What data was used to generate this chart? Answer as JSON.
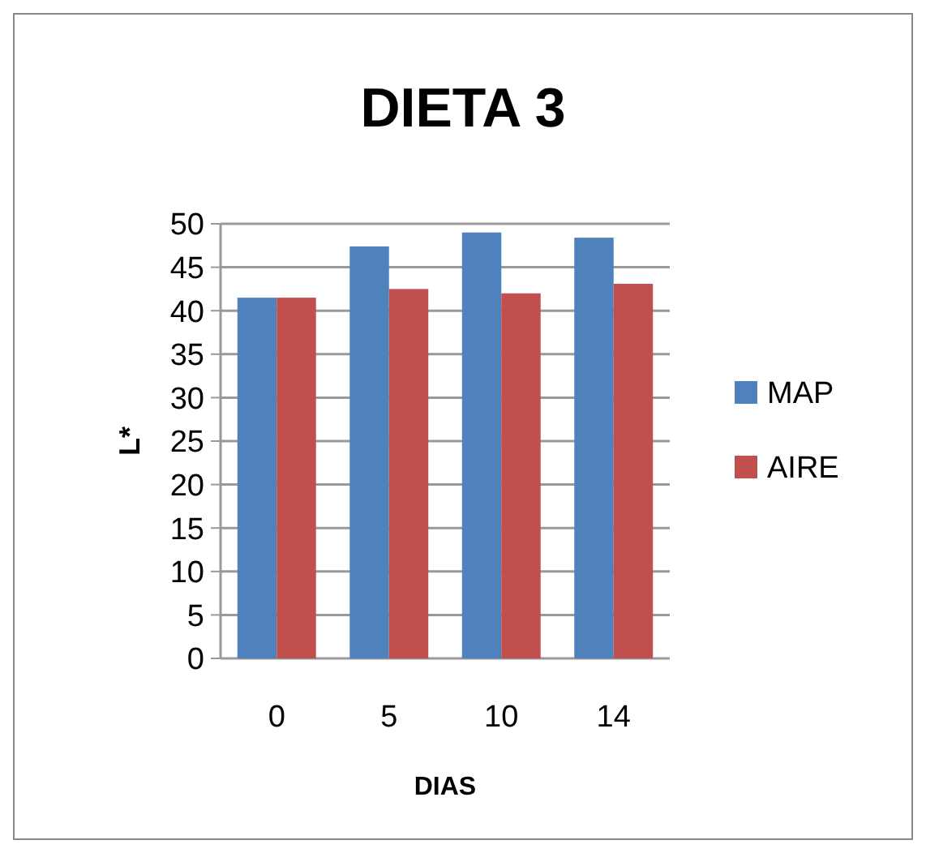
{
  "chart_data": {
    "type": "bar",
    "title": "DIETA 3",
    "xlabel": "DIAS",
    "ylabel": "L*",
    "categories": [
      "0",
      "5",
      "10",
      "14"
    ],
    "series": [
      {
        "name": "MAP",
        "color": "#4f81bd",
        "values": [
          41.5,
          47.4,
          49.0,
          48.4
        ]
      },
      {
        "name": "AIRE",
        "color": "#c0504d",
        "values": [
          41.5,
          42.5,
          42.0,
          43.1
        ]
      }
    ],
    "ylim": [
      0,
      50
    ],
    "yticks": [
      0,
      5,
      10,
      15,
      20,
      25,
      30,
      35,
      40,
      45,
      50
    ],
    "grid": "y",
    "legend": "right"
  }
}
